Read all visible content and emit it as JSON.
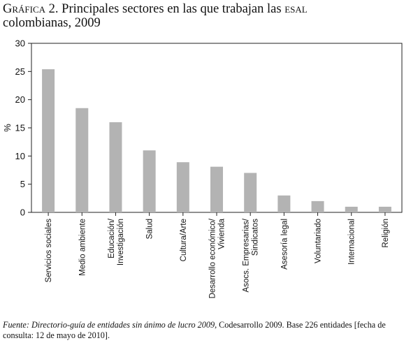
{
  "header": {
    "label": "Gráfica 2.",
    "title": "Principales sectores en las que trabajan las",
    "acronym": "esal",
    "title_end": "colombianas, 2009"
  },
  "chart_data": {
    "type": "bar",
    "ylabel": "%",
    "ylim": [
      0,
      30
    ],
    "yticks": [
      0,
      5,
      10,
      15,
      20,
      25,
      30
    ],
    "grid": false,
    "categories": [
      [
        "Servicios sociales"
      ],
      [
        "Medio ambiente"
      ],
      [
        "Educación/",
        "Investigación"
      ],
      [
        "Salud"
      ],
      [
        "Cultura/Arte"
      ],
      [
        "Desarrollo económico/",
        "Vivienda"
      ],
      [
        "Asocs. Empresarias/",
        "Sindicatos"
      ],
      [
        "Asesoría legal"
      ],
      [
        "Voluntariado"
      ],
      [
        "Internacional"
      ],
      [
        "Religión"
      ]
    ],
    "values": [
      25.4,
      18.5,
      16.0,
      11.0,
      8.9,
      8.1,
      7.0,
      3.0,
      2.0,
      1.0,
      1.0
    ],
    "bar_color": "#b3b3b3"
  },
  "source": {
    "label": "Fuente:",
    "citation_italic": "Directorio-guía de entidades sin ánimo de lucro 2009",
    "citation_rest": ", Codesarrollo 2009. Base 226 entidades [fecha de consulta: 12 de mayo de 2010]."
  }
}
